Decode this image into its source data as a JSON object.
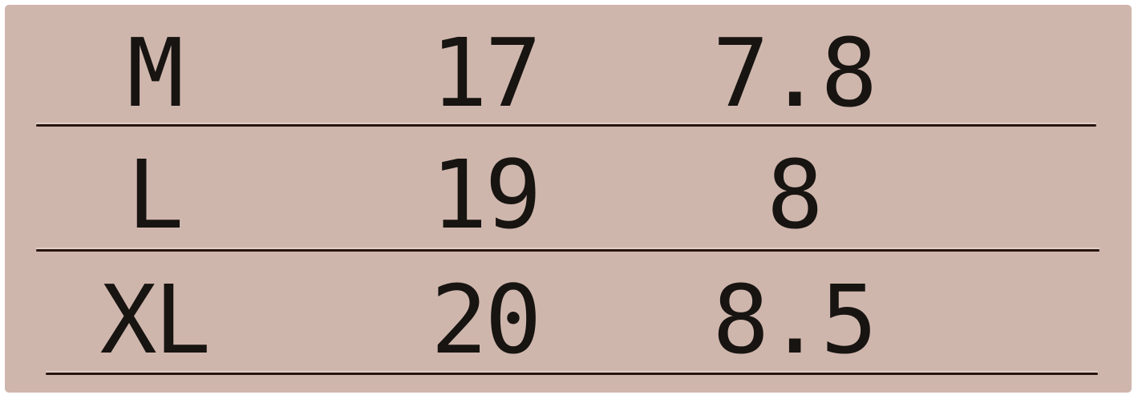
{
  "colors": {
    "panel_background": "#cfb6ac",
    "text": "#171411",
    "rule": "#27150f",
    "outer_margin": "#ffffff"
  },
  "chart_data": {
    "type": "table",
    "title": "",
    "columns": [
      "",
      "",
      ""
    ],
    "rows": [
      [
        "M",
        "17",
        "7.8"
      ],
      [
        "L",
        "19",
        "8"
      ],
      [
        "XL",
        "20",
        "8.5"
      ]
    ],
    "layout": {
      "gridlines": "horizontal-only",
      "header_row": false,
      "column_alignment": "center"
    }
  }
}
